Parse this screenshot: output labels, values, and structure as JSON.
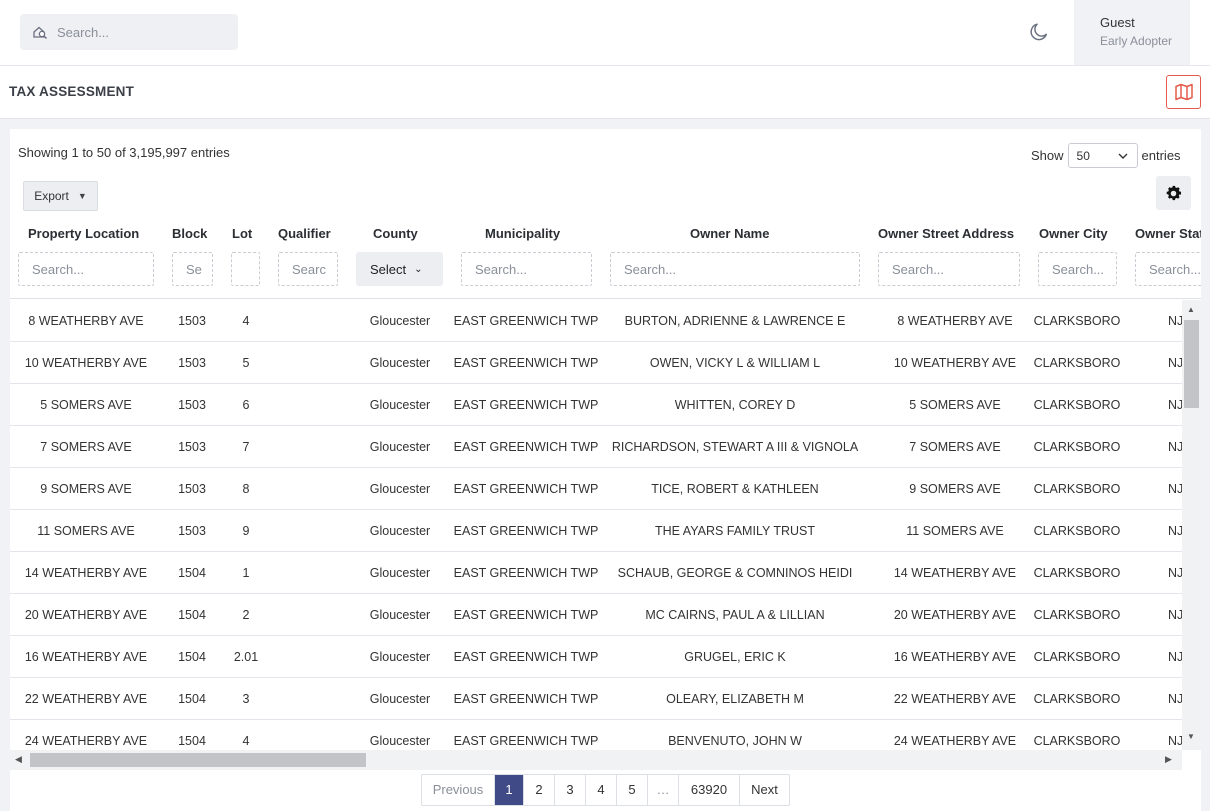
{
  "header": {
    "search_placeholder": "Search...",
    "user_name": "Guest",
    "user_role": "Early Adopter"
  },
  "page_title": "TAX ASSESSMENT",
  "table_info": {
    "showing": "Showing 1 to 50 of 3,195,997 entries",
    "show_label": "Show",
    "entries_label": "entries",
    "page_length": "50",
    "export_label": "Export"
  },
  "columns": [
    {
      "label": "Property Location",
      "filter": "Search..."
    },
    {
      "label": "Block",
      "filter": "Se"
    },
    {
      "label": "Lot",
      "filter": ""
    },
    {
      "label": "Qualifier",
      "filter": "Searc"
    },
    {
      "label": "County",
      "filter": "Select"
    },
    {
      "label": "Municipality",
      "filter": "Search..."
    },
    {
      "label": "Owner Name",
      "filter": "Search..."
    },
    {
      "label": "Owner Street Address",
      "filter": "Search..."
    },
    {
      "label": "Owner City",
      "filter": "Search..."
    },
    {
      "label": "Owner Stat",
      "filter": "Search..."
    }
  ],
  "rows": [
    [
      "8 WEATHERBY AVE",
      "1503",
      "4",
      "",
      "Gloucester",
      "EAST GREENWICH TWP",
      "BURTON, ADRIENNE & LAWRENCE E",
      "8 WEATHERBY AVE",
      "CLARKSBORO",
      "NJ"
    ],
    [
      "10 WEATHERBY AVE",
      "1503",
      "5",
      "",
      "Gloucester",
      "EAST GREENWICH TWP",
      "OWEN, VICKY L & WILLIAM L",
      "10 WEATHERBY AVE",
      "CLARKSBORO",
      "NJ"
    ],
    [
      "5 SOMERS AVE",
      "1503",
      "6",
      "",
      "Gloucester",
      "EAST GREENWICH TWP",
      "WHITTEN, COREY D",
      "5 SOMERS AVE",
      "CLARKSBORO",
      "NJ"
    ],
    [
      "7 SOMERS AVE",
      "1503",
      "7",
      "",
      "Gloucester",
      "EAST GREENWICH TWP",
      "RICHARDSON, STEWART A III & VIGNOLA",
      "7 SOMERS AVE",
      "CLARKSBORO",
      "NJ"
    ],
    [
      "9 SOMERS AVE",
      "1503",
      "8",
      "",
      "Gloucester",
      "EAST GREENWICH TWP",
      "TICE, ROBERT & KATHLEEN",
      "9 SOMERS AVE",
      "CLARKSBORO",
      "NJ"
    ],
    [
      "11 SOMERS AVE",
      "1503",
      "9",
      "",
      "Gloucester",
      "EAST GREENWICH TWP",
      "THE AYARS FAMILY TRUST",
      "11 SOMERS AVE",
      "CLARKSBORO",
      "NJ"
    ],
    [
      "14 WEATHERBY AVE",
      "1504",
      "1",
      "",
      "Gloucester",
      "EAST GREENWICH TWP",
      "SCHAUB, GEORGE & COMNINOS HEIDI",
      "14 WEATHERBY AVE",
      "CLARKSBORO",
      "NJ"
    ],
    [
      "20 WEATHERBY AVE",
      "1504",
      "2",
      "",
      "Gloucester",
      "EAST GREENWICH TWP",
      "MC CAIRNS, PAUL A & LILLIAN",
      "20 WEATHERBY AVE",
      "CLARKSBORO",
      "NJ"
    ],
    [
      "16 WEATHERBY AVE",
      "1504",
      "2.01",
      "",
      "Gloucester",
      "EAST GREENWICH TWP",
      "GRUGEL, ERIC K",
      "16 WEATHERBY AVE",
      "CLARKSBORO",
      "NJ"
    ],
    [
      "22 WEATHERBY AVE",
      "1504",
      "3",
      "",
      "Gloucester",
      "EAST GREENWICH TWP",
      "OLEARY, ELIZABETH M",
      "22 WEATHERBY AVE",
      "CLARKSBORO",
      "NJ"
    ],
    [
      "24 WEATHERBY AVE",
      "1504",
      "4",
      "",
      "Gloucester",
      "EAST GREENWICH TWP",
      "BENVENUTO, JOHN W",
      "24 WEATHERBY AVE",
      "CLARKSBORO",
      "NJ"
    ]
  ],
  "pagination": {
    "previous": "Previous",
    "pages": [
      "1",
      "2",
      "3",
      "4",
      "5",
      "…",
      "63920"
    ],
    "active": "1",
    "next": "Next"
  },
  "colors": {
    "accent": "#3f4a86",
    "map_button": "#e45b4c"
  },
  "icons": {
    "search": "search-icon",
    "theme": "moon-icon",
    "map": "map-icon",
    "settings": "gear-icon"
  }
}
